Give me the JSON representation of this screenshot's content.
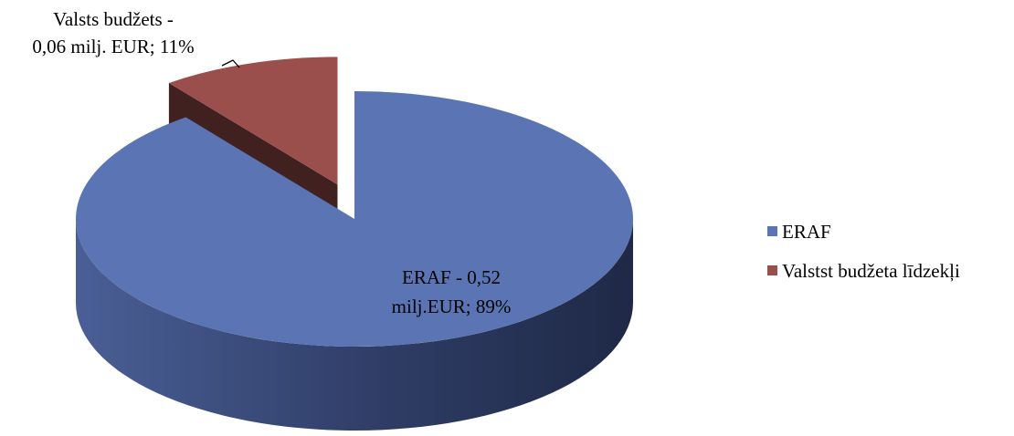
{
  "chart_data": {
    "type": "pie",
    "style": "3d-exploded",
    "slices": [
      {
        "name": "ERAF",
        "value": 0.52,
        "percent": 89,
        "color": "#5B74B4",
        "label_line1": "ERAF -  0,52",
        "label_line2": "milj.EUR; 89%"
      },
      {
        "name": "Valstst budžeta līdzekļi",
        "value": 0.06,
        "percent": 11,
        "color": "#9B4F4D",
        "label_line1": "Valsts budžets -",
        "label_line2": "0,06 milj. EUR; 11%"
      }
    ],
    "legend": {
      "position": "right",
      "entries": [
        "ERAF",
        "Valstst budžeta līdzekļi"
      ]
    }
  }
}
